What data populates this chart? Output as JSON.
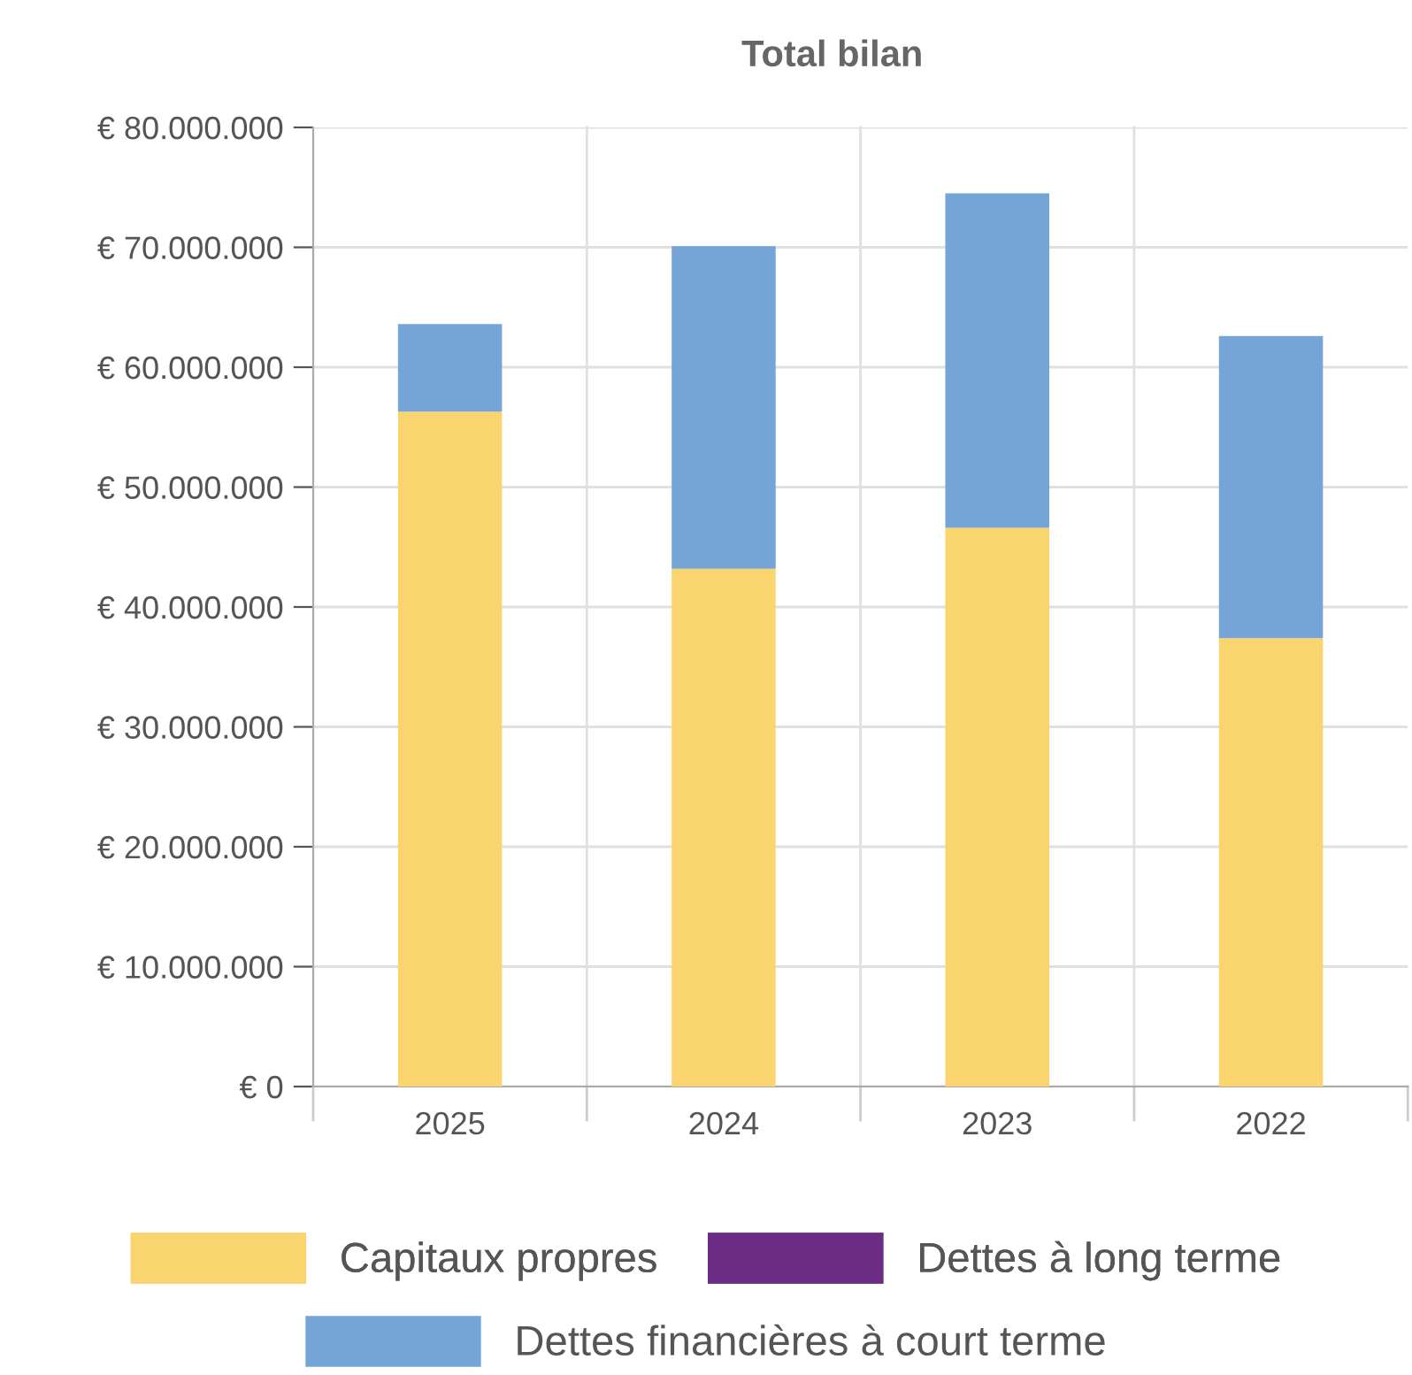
{
  "chart_data": {
    "type": "bar",
    "title": "Total bilan",
    "stacked": true,
    "categories": [
      "2025",
      "2024",
      "2023",
      "2022"
    ],
    "series": [
      {
        "name": "Capitaux propres",
        "color": "#fad56f",
        "values": [
          56300000,
          43200000,
          46600000,
          37400000
        ]
      },
      {
        "name": "Dettes à long terme",
        "color": "#6a2d83",
        "values": [
          0,
          0,
          0,
          0
        ]
      },
      {
        "name": "Dettes financières à court terme",
        "color": "#74a5d6",
        "values": [
          7300000,
          26900000,
          27900000,
          25200000
        ]
      }
    ],
    "ylim": [
      0,
      80000000
    ],
    "yticks": [
      {
        "value": 0,
        "label": "€ 0"
      },
      {
        "value": 10000000,
        "label": "€ 10.000.000"
      },
      {
        "value": 20000000,
        "label": "€ 20.000.000"
      },
      {
        "value": 30000000,
        "label": "€ 30.000.000"
      },
      {
        "value": 40000000,
        "label": "€ 40.000.000"
      },
      {
        "value": 50000000,
        "label": "€ 50.000.000"
      },
      {
        "value": 60000000,
        "label": "€ 60.000.000"
      },
      {
        "value": 70000000,
        "label": "€ 70.000.000"
      },
      {
        "value": 80000000,
        "label": "€ 80.000.000"
      }
    ],
    "grid": true,
    "legend": "bottom"
  }
}
